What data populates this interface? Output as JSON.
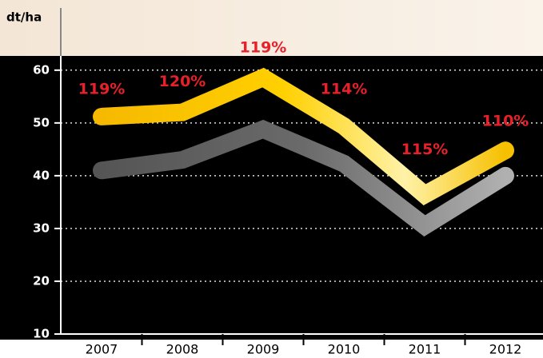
{
  "chart_data": {
    "type": "line",
    "y_label": "dt/ha",
    "categories": [
      "2007",
      "2008",
      "2009",
      "2010",
      "2011",
      "2012"
    ],
    "series": [
      {
        "color": "#7a7a7a",
        "values": [
          41,
          43,
          48.8,
          42.3,
          30.5,
          40
        ]
      },
      {
        "color": "#f6b900",
        "values": [
          51.2,
          52,
          58.6,
          49.4,
          36.4,
          44.8
        ]
      }
    ],
    "annotations": [
      "119%",
      "120%",
      "119%",
      "114%",
      "115%",
      "110%"
    ],
    "annotation_color": "#e8202a",
    "ylim": [
      10,
      63
    ],
    "yticks": [
      10,
      20,
      30,
      40,
      50,
      60
    ],
    "grid": true
  }
}
